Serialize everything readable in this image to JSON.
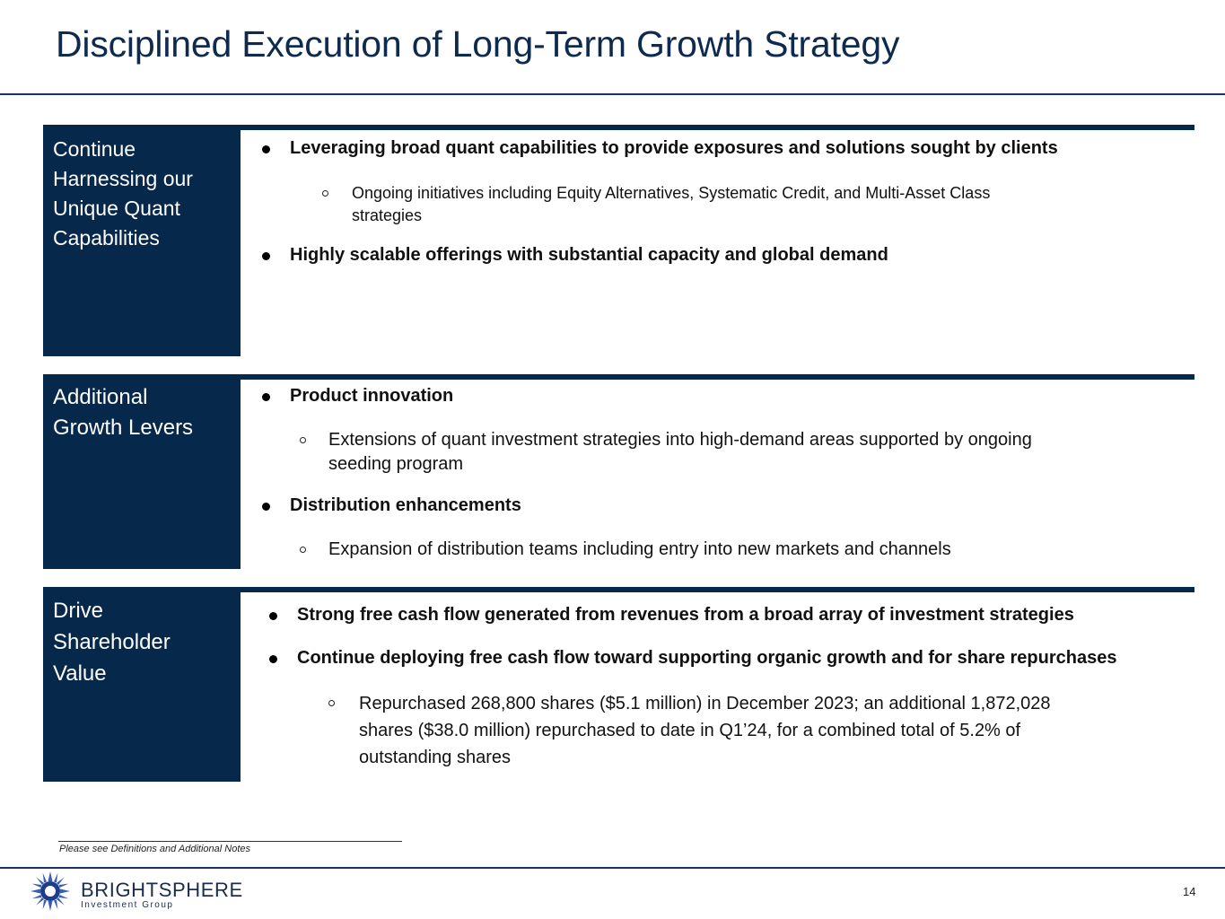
{
  "title": "Disciplined Execution of Long-Term Growth Strategy",
  "sections": [
    {
      "label": [
        "Continue",
        "Harnessing our",
        "Unique Quant",
        "Capabilities"
      ],
      "bullets": [
        "Leveraging broad quant capabilities to provide exposures and solutions sought by clients",
        "Highly scalable offerings with substantial capacity and global demand"
      ],
      "sub": [
        [
          "Ongoing initiatives including Equity Alternatives, Systematic Credit, and Multi-Asset Class",
          "strategies"
        ]
      ]
    },
    {
      "label": [
        "Additional",
        "Growth Levers"
      ],
      "bullets": [
        "Product innovation",
        "Distribution enhancements"
      ],
      "sub": [
        [
          "Extensions of quant investment strategies into high-demand areas supported by ongoing",
          "seeding program"
        ],
        [
          "Expansion of distribution teams including entry into new markets and channels"
        ]
      ]
    },
    {
      "label": [
        "Drive",
        "Shareholder",
        "Value"
      ],
      "bullets": [
        "Strong free cash flow generated from revenues from a broad array of investment strategies",
        "Continue deploying free cash flow toward supporting organic growth and for share repurchases"
      ],
      "sub": [
        [
          "Repurchased 268,800 shares ($5.1 million) in December 2023; an additional 1,872,028",
          "shares ($38.0 million) repurchased to date in Q1’24, for a combined total of 5.2% of",
          "outstanding shares"
        ]
      ]
    }
  ],
  "footnote": "Please see Definitions and Additional Notes",
  "logo": {
    "name": "BRIGHTSPHERE",
    "subtitle": "Investment Group"
  },
  "page_number": "14",
  "colors": {
    "navy": "#06284a",
    "title": "#0e2a4e"
  }
}
